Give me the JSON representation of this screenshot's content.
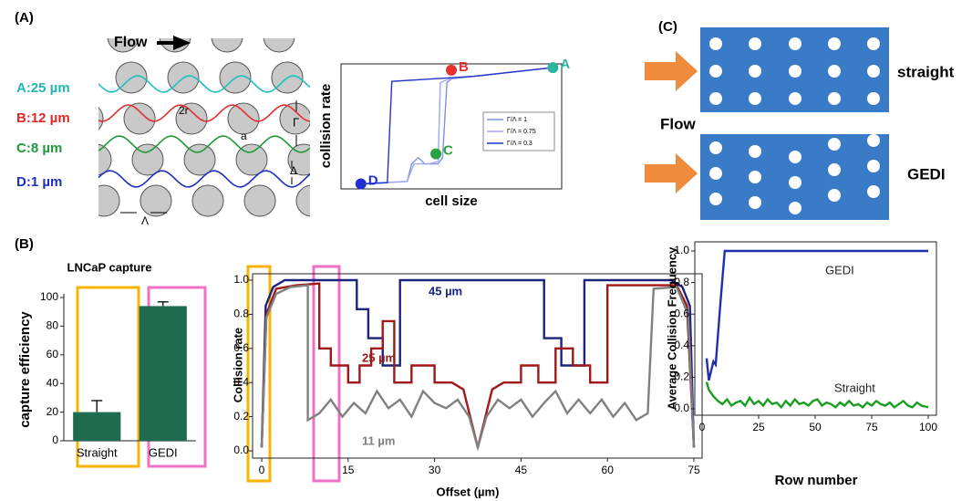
{
  "labels": {
    "panel_a": "(A)",
    "panel_b": "(B)",
    "panel_c": "(C)",
    "flow_a": "Flow",
    "stream_a": "A:25 µm",
    "stream_b": "B:12 µm",
    "stream_c": "C:8 µm",
    "stream_d": "D:1 µm",
    "diameter": "2r",
    "gap": "a",
    "row_shift": "Γ",
    "delta": "Δ",
    "lambda": "Λ",
    "flow_c": "Flow",
    "straight": "straight",
    "gedi": "GEDI"
  },
  "chart_data": [
    {
      "type": "line",
      "xlabel": "cell size",
      "ylabel": "collision rate",
      "xlim": [
        0,
        1
      ],
      "ylim": [
        0,
        1
      ],
      "legend": "right",
      "series": [
        {
          "name": "Γ/Λ = 1",
          "color": "#8090e0",
          "x": [
            0.09,
            0.3,
            0.32,
            0.35,
            0.38,
            0.44,
            0.46,
            0.48,
            0.5,
            0.96
          ],
          "values": [
            0.04,
            0.06,
            0.2,
            0.25,
            0.2,
            0.2,
            0.25,
            0.85,
            0.88,
            0.97
          ]
        },
        {
          "name": "Γ/Λ = 0.75",
          "color": "#a0a8f0",
          "x": [
            0.09,
            0.3,
            0.33,
            0.4,
            0.44,
            0.45,
            0.49,
            0.96
          ],
          "values": [
            0.04,
            0.06,
            0.2,
            0.2,
            0.22,
            0.85,
            0.88,
            0.97
          ]
        },
        {
          "name": "Γ/Λ = 0.3",
          "color": "#2233cc",
          "x": [
            0.09,
            0.21,
            0.23,
            0.6,
            0.96
          ],
          "values": [
            0.04,
            0.05,
            0.86,
            0.9,
            0.97
          ]
        }
      ],
      "annotations": [
        {
          "text": "A",
          "x": 0.96,
          "y": 0.97,
          "color": "#2bb5a0"
        },
        {
          "text": "B",
          "x": 0.5,
          "y": 0.95,
          "color": "#e83030"
        },
        {
          "text": "C",
          "x": 0.43,
          "y": 0.28,
          "color": "#2aa040"
        },
        {
          "text": "D",
          "x": 0.09,
          "y": 0.04,
          "color": "#2030d0"
        }
      ]
    },
    {
      "type": "bar",
      "title": "LNCaP capture",
      "ylabel": "capture efficiency",
      "categories": [
        "Straight",
        "GEDI"
      ],
      "values": [
        20,
        94
      ],
      "errors": [
        8,
        3
      ],
      "color": "#1e6b50",
      "ylim": [
        0,
        100
      ],
      "yticks": [
        0,
        20,
        40,
        60,
        80,
        100
      ]
    },
    {
      "type": "line",
      "xlabel": "Offset (µm)",
      "ylabel": "Collision rate",
      "xlim": [
        0,
        75
      ],
      "ylim": [
        0,
        1
      ],
      "xticks": [
        0,
        15,
        30,
        45,
        60,
        75
      ],
      "yticks": [
        {
          "value": 0,
          "label": "0.0"
        },
        0.2,
        0.4,
        0.6,
        0.8,
        {
          "value": 1,
          "label": "1.0"
        }
      ],
      "series": [
        {
          "name": "45 µm",
          "color": "#1a237e",
          "x": [
            0,
            0.7,
            2,
            4,
            16.5,
            16.5,
            18.5,
            18.5,
            21,
            21,
            24,
            24,
            49,
            49,
            52,
            52,
            56,
            56,
            71,
            73,
            74.3,
            75
          ],
          "values": [
            0.02,
            0.85,
            0.96,
            1,
            1,
            0.83,
            0.83,
            0.66,
            0.66,
            0.5,
            0.5,
            1,
            1,
            0.66,
            0.66,
            0.5,
            0.5,
            1,
            1,
            0.96,
            0.85,
            0.02
          ]
        },
        {
          "name": "25 µm",
          "color": "#a01818",
          "x": [
            0,
            0.8,
            2.5,
            6,
            10,
            10,
            12,
            12,
            15,
            15,
            17,
            17,
            19,
            19,
            21,
            21,
            23,
            23,
            26,
            26,
            30,
            30,
            33,
            35,
            37.5,
            40,
            42,
            45,
            45,
            48,
            48,
            51,
            51,
            54,
            54,
            57,
            57,
            60,
            60,
            72,
            73.8,
            75
          ],
          "values": [
            0.02,
            0.8,
            0.95,
            0.97,
            0.98,
            0.6,
            0.6,
            0.5,
            0.5,
            0.4,
            0.4,
            0.5,
            0.5,
            0.6,
            0.6,
            0.76,
            0.76,
            0.4,
            0.4,
            0.5,
            0.5,
            0.4,
            0.4,
            0.36,
            0.02,
            0.36,
            0.4,
            0.4,
            0.5,
            0.5,
            0.4,
            0.4,
            0.6,
            0.6,
            0.5,
            0.5,
            0.4,
            0.4,
            0.97,
            0.97,
            0.85,
            0.02
          ]
        },
        {
          "name": "11 µm",
          "color": "#808080",
          "x": [
            0,
            0.8,
            2.5,
            5,
            8,
            8,
            10,
            12,
            14,
            16,
            18,
            20,
            22,
            24,
            26,
            28,
            30,
            32,
            34,
            36,
            37.5,
            39,
            41,
            43,
            45,
            47,
            49,
            51,
            53,
            55,
            57,
            59,
            61,
            63,
            65,
            67,
            68,
            72,
            74,
            75
          ],
          "values": [
            0.02,
            0.78,
            0.92,
            0.96,
            0.97,
            0.18,
            0.22,
            0.3,
            0.2,
            0.28,
            0.22,
            0.35,
            0.25,
            0.3,
            0.2,
            0.35,
            0.28,
            0.25,
            0.3,
            0.2,
            0.02,
            0.2,
            0.3,
            0.25,
            0.3,
            0.2,
            0.28,
            0.35,
            0.22,
            0.3,
            0.22,
            0.3,
            0.2,
            0.28,
            0.18,
            0.22,
            0.95,
            0.96,
            0.8,
            0.02
          ]
        }
      ]
    },
    {
      "type": "line",
      "xlabel": "Row number",
      "ylabel": "Average Collision Frequency",
      "xlim": [
        0,
        100
      ],
      "ylim": [
        0,
        1
      ],
      "xticks": [
        0,
        25,
        50,
        75,
        100
      ],
      "yticks": [
        {
          "value": 0,
          "label": "0.0"
        },
        0.2,
        0.4,
        0.6,
        0.8,
        {
          "value": 1,
          "label": "1.0"
        }
      ],
      "series": [
        {
          "name": "GEDI",
          "color": "#1f2fb0",
          "x": [
            2,
            3,
            5,
            6,
            8,
            10,
            100
          ],
          "values": [
            0.32,
            0.18,
            0.3,
            0.28,
            0.65,
            1,
            1
          ]
        },
        {
          "name": "Straight",
          "color": "#1a9e20",
          "x": [
            2,
            3,
            5,
            7,
            9,
            11,
            13,
            15,
            17,
            19,
            21,
            23,
            25,
            27,
            29,
            31,
            33,
            35,
            37,
            39,
            41,
            43,
            45,
            47,
            49,
            51,
            53,
            55,
            57,
            59,
            61,
            63,
            65,
            67,
            69,
            71,
            73,
            75,
            77,
            79,
            81,
            83,
            85,
            87,
            89,
            91,
            93,
            95,
            97,
            100
          ],
          "values": [
            0.17,
            0.12,
            0.08,
            0.05,
            0.03,
            0.06,
            0.02,
            0.04,
            0.05,
            0.02,
            0.07,
            0.03,
            0.05,
            0.02,
            0.06,
            0.03,
            0.04,
            0.01,
            0.05,
            0.02,
            0.06,
            0.03,
            0.04,
            0.02,
            0.05,
            0.06,
            0.02,
            0.04,
            0.03,
            0.01,
            0.04,
            0.02,
            0.05,
            0.02,
            0.03,
            0.01,
            0.04,
            0.02,
            0.05,
            0.03,
            0.02,
            0.04,
            0.01,
            0.03,
            0.05,
            0.02,
            0.01,
            0.04,
            0.02,
            0.01
          ]
        }
      ]
    }
  ]
}
